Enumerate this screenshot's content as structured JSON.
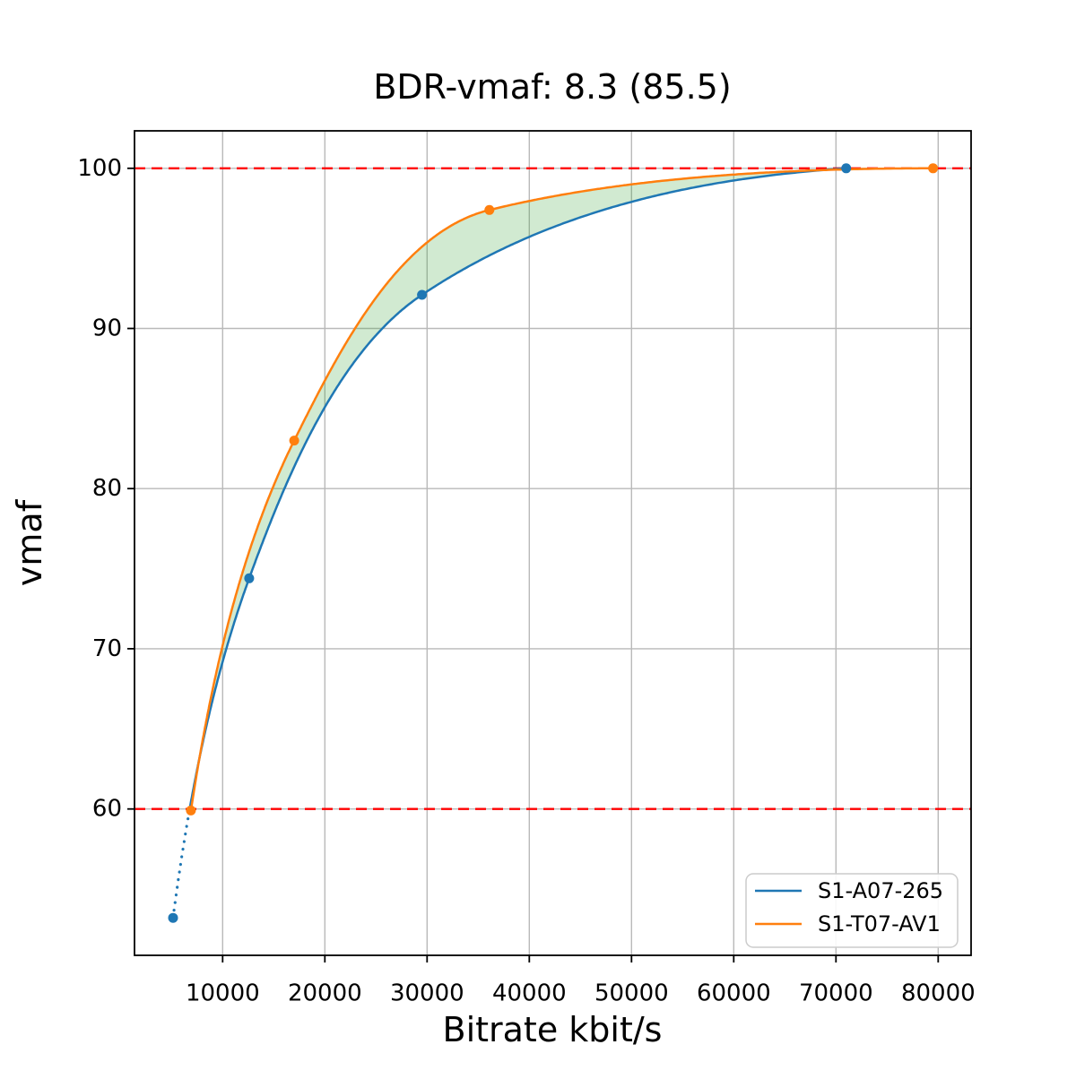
{
  "figure": {
    "background": "#ffffff"
  },
  "chart_data": {
    "type": "line",
    "title": "BDR-vmaf: 8.3 (85.5)",
    "xlabel": "Bitrate kbit/s",
    "ylabel": "vmaf",
    "xlim": [
      1380,
      83220
    ],
    "ylim": [
      50.86,
      102.34
    ],
    "xticks": [
      10000,
      20000,
      30000,
      40000,
      50000,
      60000,
      70000,
      80000
    ],
    "yticks": [
      60,
      70,
      80,
      90,
      100
    ],
    "grid": true,
    "grid_color": "#b9b9b9",
    "frame_color": "#000000",
    "quality_range": [
      60,
      100
    ],
    "hlines": [
      {
        "y": 60,
        "color": "#ff0000",
        "style": "dashed"
      },
      {
        "y": 100,
        "color": "#ff0000",
        "style": "dashed"
      }
    ],
    "fill_between": {
      "color": "#2ca02c",
      "opacity": 0.22
    },
    "series": [
      {
        "name": "S1-A07-265",
        "color": "#1f77b4",
        "marker": "circle",
        "points": [
          [
            5150,
            53.2
          ],
          [
            12600,
            74.4
          ],
          [
            29500,
            92.1
          ],
          [
            71000,
            100.0
          ]
        ],
        "below_range_style": "dotted"
      },
      {
        "name": "S1-T07-AV1",
        "color": "#ff7f0e",
        "marker": "circle",
        "points": [
          [
            6900,
            59.9
          ],
          [
            17000,
            83.0
          ],
          [
            36100,
            97.4
          ],
          [
            79500,
            100.0
          ]
        ],
        "below_range_style": "solid"
      }
    ],
    "legend": {
      "position": "lower right"
    }
  }
}
